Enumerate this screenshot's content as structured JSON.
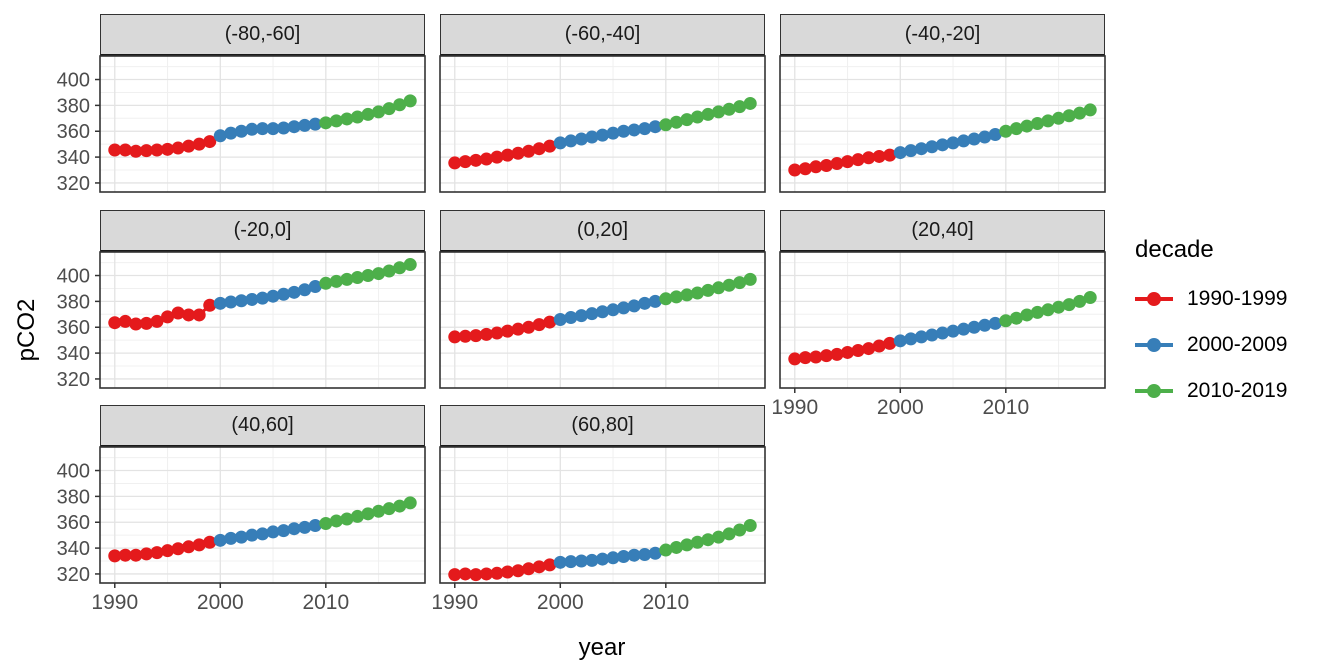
{
  "figure": {
    "y_axis_title": "pCO2",
    "x_axis_title": "year"
  },
  "legend": {
    "title": "decade",
    "items": [
      {
        "label": "1990-1999",
        "color": "#E41A1C"
      },
      {
        "label": "2000-2009",
        "color": "#377EB8"
      },
      {
        "label": "2010-2019",
        "color": "#4DAF4A"
      }
    ]
  },
  "chart_data": {
    "type": "line",
    "description": "Faceted annual mean pCO2 time series by latitude band, points+lines colored by decade",
    "xlabel": "year",
    "ylabel": "pCO2",
    "xlim": [
      1988.6,
      2019.4
    ],
    "ylim": [
      313,
      418.2
    ],
    "x_ticks": [
      1990,
      2000,
      2010
    ],
    "x_minor": [
      1995,
      2005,
      2015
    ],
    "y_ticks": [
      320,
      340,
      360,
      380,
      400
    ],
    "y_minor": [
      330,
      350,
      370,
      390,
      410
    ],
    "grid": true,
    "legend_position": "right",
    "legend_title": "decade",
    "facet_grid": {
      "rows": 3,
      "cols": 3
    },
    "facets": [
      {
        "label": "(-80,-60]",
        "series": [
          {
            "name": "1990-1999",
            "color": "#E41A1C",
            "start_year": 1990,
            "values": [
              345.5,
              345.5,
              344.5,
              345,
              345.5,
              346,
              347,
              348.5,
              350,
              352
            ]
          },
          {
            "name": "2000-2009",
            "color": "#377EB8",
            "start_year": 2000,
            "values": [
              356.5,
              358.5,
              360,
              361.5,
              362,
              362,
              362.5,
              363.5,
              364.5,
              365.5
            ]
          },
          {
            "name": "2010-2019",
            "color": "#4DAF4A",
            "start_year": 2010,
            "values": [
              366.5,
              368,
              369.5,
              371,
              373,
              375,
              377.5,
              380.5,
              383.5
            ]
          }
        ]
      },
      {
        "label": "(-60,-40]",
        "series": [
          {
            "name": "1990-1999",
            "color": "#E41A1C",
            "start_year": 1990,
            "values": [
              335.5,
              336.5,
              337.5,
              338.5,
              340,
              341.5,
              343,
              344.5,
              346.5,
              348.5
            ]
          },
          {
            "name": "2000-2009",
            "color": "#377EB8",
            "start_year": 2000,
            "values": [
              351,
              352.5,
              354,
              355.5,
              357,
              358.5,
              360,
              361,
              362,
              363.5
            ]
          },
          {
            "name": "2010-2019",
            "color": "#4DAF4A",
            "start_year": 2010,
            "values": [
              365,
              367,
              369,
              371,
              373,
              375,
              377,
              379,
              381.5
            ]
          }
        ]
      },
      {
        "label": "(-40,-20]",
        "series": [
          {
            "name": "1990-1999",
            "color": "#E41A1C",
            "start_year": 1990,
            "values": [
              330,
              331,
              332.5,
              333.5,
              335,
              336.5,
              338,
              339.5,
              340.5,
              341.5
            ]
          },
          {
            "name": "2000-2009",
            "color": "#377EB8",
            "start_year": 2000,
            "values": [
              343.5,
              345,
              346.5,
              348,
              349.5,
              351,
              352.5,
              354,
              355.5,
              357.5
            ]
          },
          {
            "name": "2010-2019",
            "color": "#4DAF4A",
            "start_year": 2010,
            "values": [
              360,
              362,
              364,
              366,
              368,
              370,
              372,
              374,
              376.5
            ]
          }
        ]
      },
      {
        "label": "(-20,0]",
        "series": [
          {
            "name": "1990-1999",
            "color": "#E41A1C",
            "start_year": 1990,
            "values": [
              363.5,
              364.5,
              362.5,
              363,
              364.5,
              368,
              371,
              369.5,
              369.5,
              377
            ]
          },
          {
            "name": "2000-2009",
            "color": "#377EB8",
            "start_year": 2000,
            "values": [
              378.5,
              379.5,
              380.5,
              381.5,
              382.5,
              384,
              385.5,
              387,
              389,
              391.5
            ]
          },
          {
            "name": "2010-2019",
            "color": "#4DAF4A",
            "start_year": 2010,
            "values": [
              394,
              395.5,
              397,
              398.5,
              400,
              401.5,
              403.5,
              406,
              408.5
            ]
          }
        ]
      },
      {
        "label": "(0,20]",
        "series": [
          {
            "name": "1990-1999",
            "color": "#E41A1C",
            "start_year": 1990,
            "values": [
              352.5,
              353,
              353.5,
              354.5,
              355.5,
              357,
              358.5,
              360,
              362,
              364
            ]
          },
          {
            "name": "2000-2009",
            "color": "#377EB8",
            "start_year": 2000,
            "values": [
              366,
              367.5,
              369,
              370.5,
              372,
              373.5,
              375,
              376.5,
              378.5,
              380
            ]
          },
          {
            "name": "2010-2019",
            "color": "#4DAF4A",
            "start_year": 2010,
            "values": [
              382,
              383.5,
              385,
              386.5,
              388.5,
              390.5,
              392.5,
              394.5,
              397
            ]
          }
        ]
      },
      {
        "label": "(20,40]",
        "series": [
          {
            "name": "1990-1999",
            "color": "#E41A1C",
            "start_year": 1990,
            "values": [
              335.5,
              336.5,
              337,
              338,
              339,
              340.5,
              342,
              343.5,
              345.5,
              347.5
            ]
          },
          {
            "name": "2000-2009",
            "color": "#377EB8",
            "start_year": 2000,
            "values": [
              349.5,
              351,
              352.5,
              354,
              355.5,
              357,
              358.5,
              360,
              361.5,
              363
            ]
          },
          {
            "name": "2010-2019",
            "color": "#4DAF4A",
            "start_year": 2010,
            "values": [
              365,
              367,
              369.5,
              371.5,
              373.5,
              375.5,
              377.5,
              380,
              383
            ]
          }
        ]
      },
      {
        "label": "(40,60]",
        "series": [
          {
            "name": "1990-1999",
            "color": "#E41A1C",
            "start_year": 1990,
            "values": [
              334,
              334.5,
              334.5,
              335.5,
              336.5,
              338,
              339.5,
              341,
              342.5,
              344.5
            ]
          },
          {
            "name": "2000-2009",
            "color": "#377EB8",
            "start_year": 2000,
            "values": [
              346,
              347.5,
              348.5,
              350,
              351,
              352.5,
              353.5,
              355,
              356,
              357.5
            ]
          },
          {
            "name": "2010-2019",
            "color": "#4DAF4A",
            "start_year": 2010,
            "values": [
              359,
              361,
              362.5,
              364.5,
              366.5,
              368.5,
              370.5,
              372.5,
              375
            ]
          }
        ]
      },
      {
        "label": "(60,80]",
        "series": [
          {
            "name": "1990-1999",
            "color": "#E41A1C",
            "start_year": 1990,
            "values": [
              319.5,
              320,
              319.5,
              320,
              320.5,
              321.5,
              322.5,
              324,
              325.5,
              327
            ]
          },
          {
            "name": "2000-2009",
            "color": "#377EB8",
            "start_year": 2000,
            "values": [
              329,
              329.5,
              330,
              330.5,
              331.5,
              332.5,
              333.5,
              334.5,
              335,
              336
            ]
          },
          {
            "name": "2010-2019",
            "color": "#4DAF4A",
            "start_year": 2010,
            "values": [
              338.5,
              340.5,
              342.5,
              344.5,
              346.5,
              348.5,
              351,
              354,
              357.5
            ]
          }
        ]
      }
    ],
    "style": {
      "strip_fill": "#d9d9d9",
      "panel_border": "#333333",
      "grid_major": "#e3e3e3",
      "grid_minor": "#f0f0f0",
      "tick_color": "#333333",
      "tick_label_color": "#4d4d4d"
    }
  }
}
